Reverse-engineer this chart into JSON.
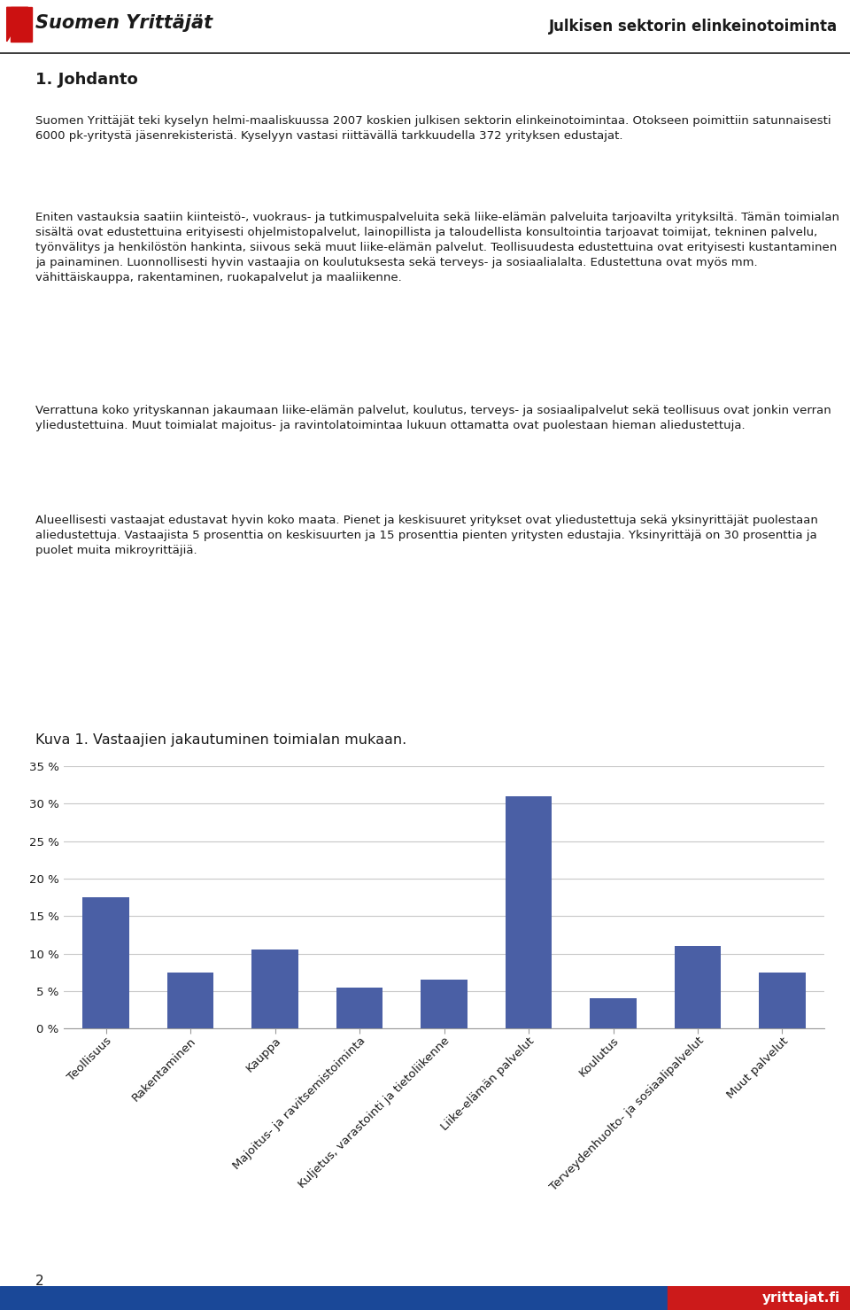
{
  "categories": [
    "Teollisuus",
    "Rakentaminen",
    "Kauppa",
    "Majoitus- ja ravitsemistoiminta",
    "Kuljetus, varastointi ja tietoliikenne",
    "Liike-elämän palvelut",
    "Koulutus",
    "Terveydenhuolto- ja sosiaalipalvelut",
    "Muut palvelut"
  ],
  "values": [
    17.5,
    7.5,
    10.5,
    5.5,
    6.5,
    31.0,
    4.0,
    11.0,
    7.5
  ],
  "bar_color": "#4a5fa5",
  "chart_title": "Kuva 1. Vastaajien jakautuminen toimialan mukaan.",
  "ylim": [
    0,
    35
  ],
  "yticks": [
    0,
    5,
    10,
    15,
    20,
    25,
    30,
    35
  ],
  "ytick_labels": [
    "0 %",
    "5 %",
    "10 %",
    "15 %",
    "20 %",
    "25 %",
    "30 %",
    "35 %"
  ],
  "header_right": "Julkisen sektorin elinkeinotoiminta",
  "header_left": "Suomen Yrittäjät",
  "page_number": "2",
  "footer_text": "yrittajat.fi",
  "section_title": "1. Johdanto",
  "body_text_1": "Suomen Yrittäjät teki kyselyn helmi-maaliskuussa 2007 koskien julkisen sektorin elinkeinotoimintaa. Otokseen poimittiin satunnaisesti 6000 pk-yritystä jäsenrekisteristä. Kyselyyn vastasi riittävällä tarkkuudella 372 yrityksen edustajat.",
  "body_text_2": "Eniten vastauksia saatiin kiinteistö-, vuokraus- ja tutkimuspalveluita sekä liike-elämän palveluita tarjoavilta yrityksiltä. Tämän toimialan sisältä ovat edustettuina erityisesti ohjelmistopalvelut, lainopillista ja taloudellista konsultointia tarjoavat toimijat, tekninen palvelu, työnvälitys ja henkilöstön hankinta, siivous sekä muut liike-elämän palvelut. Teollisuudesta edustettuina ovat erityisesti kustantaminen ja painaminen. Luonnollisesti hyvin vastaajia on koulutuksesta sekä terveys- ja sosiaalialalta. Edustettuna ovat myös mm. vähittäiskauppa, rakentaminen, ruokapalvelut ja maaliikenne.",
  "body_text_3": "Verrattuna koko yrityskannan jakaumaan liike-elämän palvelut, koulutus, terveys- ja sosiaalipalvelut sekä teollisuus ovat jonkin verran yliedustettuina. Muut toimialat majoitus- ja ravintolatoimintaa lukuun ottamatta ovat puolestaan hieman aliedustettuja.",
  "body_text_4": "Alueellisesti vastaajat edustavat hyvin koko maata. Pienet ja keskisuuret yritykset ovat yliedustettuja sekä yksinyrittäjät puolestaan aliedustettuja. Vastaajista 5 prosenttia on keskisuurten ja 15 prosenttia pienten yritysten edustajia. Yksinyrittäjä on 30 prosenttia ja puolet muita mikroyrittäjiä.",
  "bg_color": "#ffffff",
  "grid_color": "#c8c8c8",
  "text_color": "#1a1a1a",
  "tick_label_fontsize": 9.5,
  "body_fontsize": 9.5,
  "title_fontsize": 11.5
}
